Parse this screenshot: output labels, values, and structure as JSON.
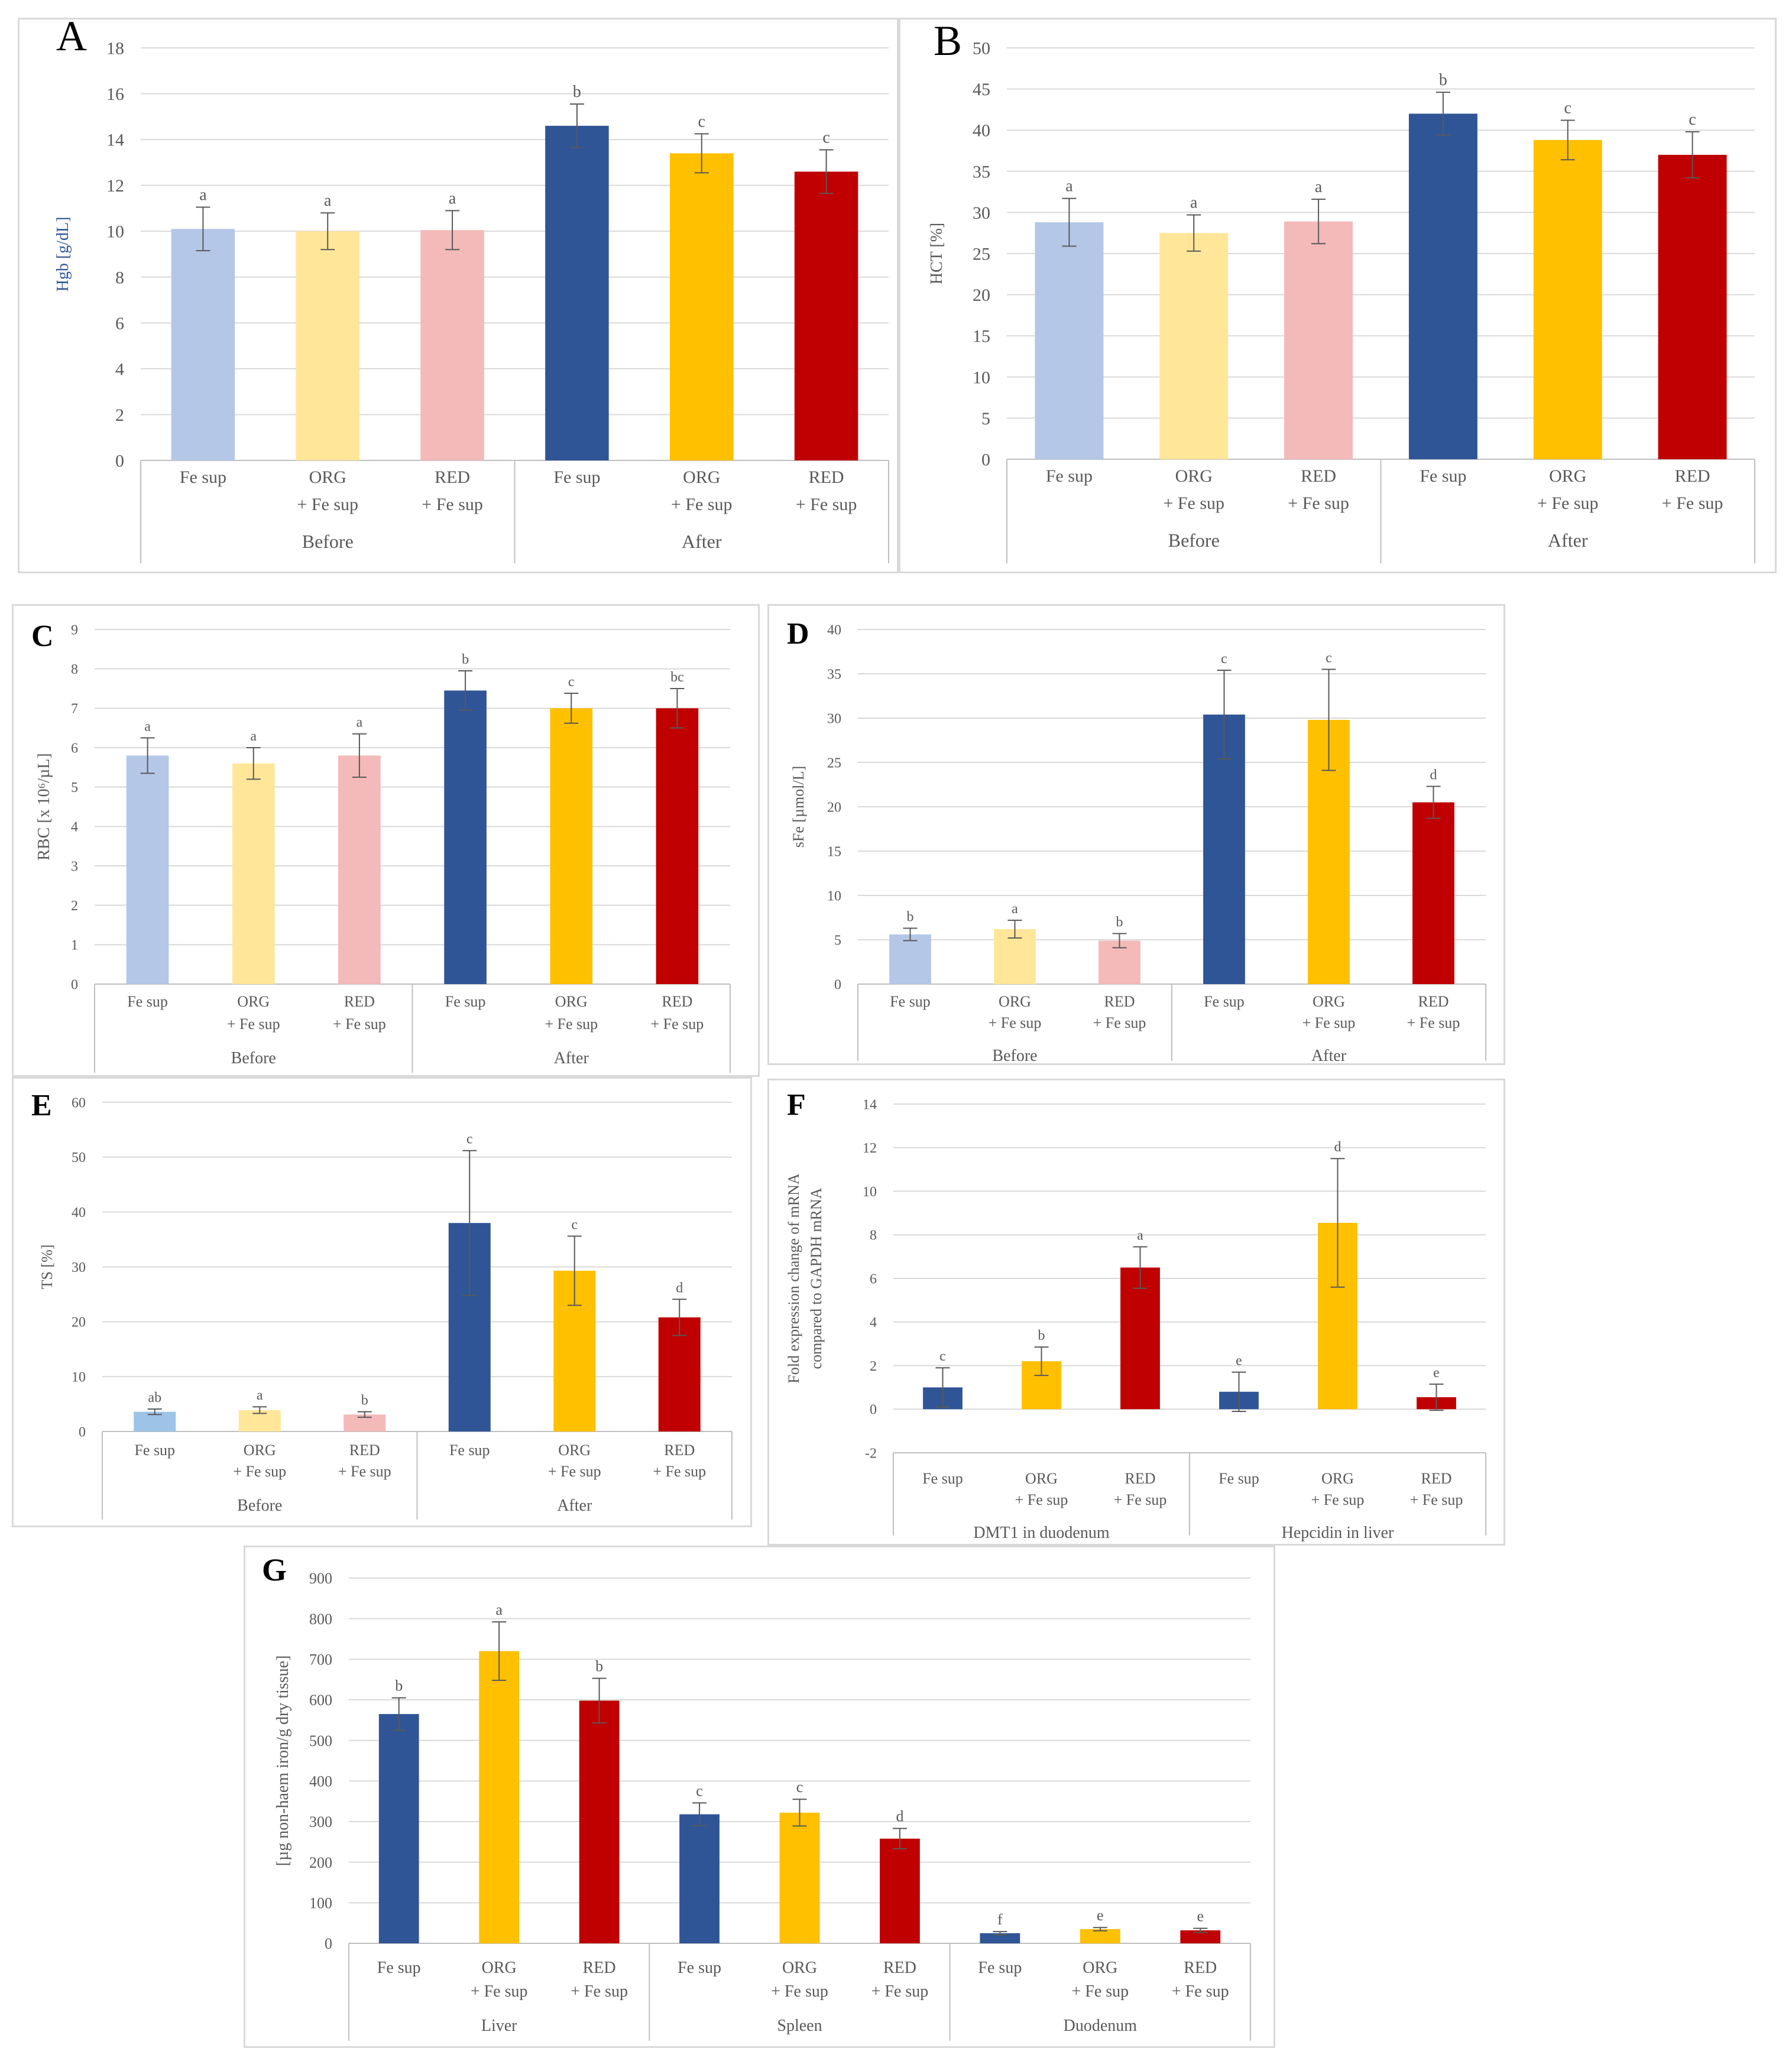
{
  "colors": {
    "fe_before": "#b4c7e7",
    "org_before": "#ffe699",
    "red_before": "#f4b9b9",
    "fe_after": "#2f5597",
    "org_after": "#ffc000",
    "red_after": "#c00000",
    "fe_light_e": "#9dc3e6",
    "gridline": "#d9d9d9",
    "axis_text": "#595959",
    "error_bar": "#595959"
  },
  "chart_data": [
    {
      "panel": "A",
      "type": "bar",
      "ylabel": "Hgb [g/dL]",
      "ylim": [
        0,
        18
      ],
      "yticks": [
        0,
        2,
        4,
        6,
        8,
        10,
        12,
        14,
        16,
        18
      ],
      "categories": [
        {
          "line1": "Fe sup",
          "line2": ""
        },
        {
          "line1": "ORG",
          "line2": "+ Fe sup"
        },
        {
          "line1": "RED",
          "line2": "+ Fe sup"
        },
        {
          "line1": "Fe sup",
          "line2": ""
        },
        {
          "line1": "ORG",
          "line2": "+ Fe sup"
        },
        {
          "line1": "RED",
          "line2": "+ Fe sup"
        }
      ],
      "groups": [
        "Before",
        "After"
      ],
      "values": [
        10.1,
        10.0,
        10.05,
        14.6,
        13.4,
        12.6
      ],
      "errors": [
        0.95,
        0.8,
        0.85,
        0.95,
        0.85,
        0.95
      ],
      "letters": [
        "a",
        "a",
        "a",
        "b",
        "c",
        "c"
      ],
      "color_keys": [
        "fe_before",
        "org_before",
        "red_before",
        "fe_after",
        "org_after",
        "red_after"
      ]
    },
    {
      "panel": "B",
      "type": "bar",
      "ylabel": "HCT [%]",
      "ylim": [
        0,
        50
      ],
      "yticks": [
        0,
        5,
        10,
        15,
        20,
        25,
        30,
        35,
        40,
        45,
        50
      ],
      "categories": [
        {
          "line1": "Fe sup",
          "line2": ""
        },
        {
          "line1": "ORG",
          "line2": "+ Fe sup"
        },
        {
          "line1": "RED",
          "line2": "+ Fe sup"
        },
        {
          "line1": "Fe sup",
          "line2": ""
        },
        {
          "line1": "ORG",
          "line2": "+ Fe sup"
        },
        {
          "line1": "RED",
          "line2": "+ Fe sup"
        }
      ],
      "groups": [
        "Before",
        "After"
      ],
      "values": [
        28.8,
        27.5,
        28.9,
        42.0,
        38.8,
        37.0
      ],
      "errors": [
        2.9,
        2.2,
        2.7,
        2.6,
        2.4,
        2.8
      ],
      "letters": [
        "a",
        "a",
        "a",
        "b",
        "c",
        "c"
      ],
      "color_keys": [
        "fe_before",
        "org_before",
        "red_before",
        "fe_after",
        "org_after",
        "red_after"
      ]
    },
    {
      "panel": "C",
      "type": "bar",
      "ylabel": "RBC [x 10⁶/µL]",
      "ylim": [
        0,
        9
      ],
      "yticks": [
        0,
        1,
        2,
        3,
        4,
        5,
        6,
        7,
        8,
        9
      ],
      "categories": [
        {
          "line1": "Fe sup",
          "line2": ""
        },
        {
          "line1": "ORG",
          "line2": "+ Fe sup"
        },
        {
          "line1": "RED",
          "line2": "+ Fe sup"
        },
        {
          "line1": "Fe sup",
          "line2": ""
        },
        {
          "line1": "ORG",
          "line2": "+ Fe sup"
        },
        {
          "line1": "RED",
          "line2": "+ Fe sup"
        }
      ],
      "groups": [
        "Before",
        "After"
      ],
      "values": [
        5.8,
        5.6,
        5.8,
        7.45,
        7.0,
        7.0
      ],
      "errors": [
        0.45,
        0.4,
        0.55,
        0.5,
        0.38,
        0.5
      ],
      "letters": [
        "a",
        "a",
        "a",
        "b",
        "c",
        "bc"
      ],
      "color_keys": [
        "fe_before",
        "org_before",
        "red_before",
        "fe_after",
        "org_after",
        "red_after"
      ]
    },
    {
      "panel": "D",
      "type": "bar",
      "ylabel": "sFe [µmol/L]",
      "ylim": [
        0,
        40
      ],
      "yticks": [
        0,
        5,
        10,
        15,
        20,
        25,
        30,
        35,
        40
      ],
      "categories": [
        {
          "line1": "Fe sup",
          "line2": ""
        },
        {
          "line1": "ORG",
          "line2": "+ Fe sup"
        },
        {
          "line1": "RED",
          "line2": "+ Fe sup"
        },
        {
          "line1": "Fe sup",
          "line2": ""
        },
        {
          "line1": "ORG",
          "line2": "+ Fe sup"
        },
        {
          "line1": "RED",
          "line2": "+ Fe sup"
        }
      ],
      "groups": [
        "Before",
        "After"
      ],
      "values": [
        5.6,
        6.2,
        4.9,
        30.4,
        29.8,
        20.5
      ],
      "errors": [
        0.7,
        1.0,
        0.8,
        5.0,
        5.7,
        1.8
      ],
      "letters": [
        "b",
        "a",
        "b",
        "c",
        "c",
        "d"
      ],
      "color_keys": [
        "fe_before",
        "org_before",
        "red_before",
        "fe_after",
        "org_after",
        "red_after"
      ]
    },
    {
      "panel": "E",
      "type": "bar",
      "ylabel": "TS [%]",
      "ylim": [
        0,
        60
      ],
      "yticks": [
        0,
        10,
        20,
        30,
        40,
        50,
        60
      ],
      "categories": [
        {
          "line1": "Fe sup",
          "line2": ""
        },
        {
          "line1": "ORG",
          "line2": "+ Fe sup"
        },
        {
          "line1": "RED",
          "line2": "+ Fe sup"
        },
        {
          "line1": "Fe sup",
          "line2": ""
        },
        {
          "line1": "ORG",
          "line2": "+ Fe sup"
        },
        {
          "line1": "RED",
          "line2": "+ Fe sup"
        }
      ],
      "groups": [
        "Before",
        "After"
      ],
      "values": [
        3.6,
        3.9,
        3.1,
        38.0,
        29.3,
        20.8
      ],
      "errors": [
        0.5,
        0.6,
        0.5,
        13.2,
        6.3,
        3.3
      ],
      "letters": [
        "ab",
        "a",
        "b",
        "c",
        "c",
        "d"
      ],
      "color_keys": [
        "fe_light_e",
        "org_before",
        "red_before",
        "fe_after",
        "org_after",
        "red_after"
      ]
    },
    {
      "panel": "F",
      "type": "bar",
      "ylabel_lines": [
        "Fold expression change of mRNA",
        "compared to GAPDH mRNA"
      ],
      "ylim": [
        -2,
        14
      ],
      "yticks": [
        -2,
        0,
        2,
        4,
        6,
        8,
        10,
        12,
        14
      ],
      "categories": [
        {
          "line1": "Fe sup",
          "line2": ""
        },
        {
          "line1": "ORG",
          "line2": "+ Fe sup"
        },
        {
          "line1": "RED",
          "line2": "+ Fe sup"
        },
        {
          "line1": "Fe sup",
          "line2": ""
        },
        {
          "line1": "ORG",
          "line2": "+ Fe sup"
        },
        {
          "line1": "RED",
          "line2": "+ Fe sup"
        }
      ],
      "groups": [
        "DMT1 in duodenum",
        "Hepcidin in liver"
      ],
      "values": [
        1.0,
        2.2,
        6.5,
        0.8,
        8.55,
        0.55
      ],
      "errors": [
        0.9,
        0.65,
        0.95,
        0.9,
        2.95,
        0.6
      ],
      "letters": [
        "c",
        "b",
        "a",
        "e",
        "d",
        "e"
      ],
      "color_keys": [
        "fe_after",
        "org_after",
        "red_after",
        "fe_after",
        "org_after",
        "red_after"
      ]
    },
    {
      "panel": "G",
      "type": "bar",
      "ylabel": "[µg non-haem iron/g dry tissue]",
      "ylim": [
        0,
        900
      ],
      "yticks": [
        0,
        100,
        200,
        300,
        400,
        500,
        600,
        700,
        800,
        900
      ],
      "categories": [
        {
          "line1": "Fe sup",
          "line2": ""
        },
        {
          "line1": "ORG",
          "line2": "+ Fe sup"
        },
        {
          "line1": "RED",
          "line2": "+ Fe sup"
        },
        {
          "line1": "Fe sup",
          "line2": ""
        },
        {
          "line1": "ORG",
          "line2": "+ Fe sup"
        },
        {
          "line1": "RED",
          "line2": "+ Fe sup"
        },
        {
          "line1": "Fe sup",
          "line2": ""
        },
        {
          "line1": "ORG",
          "line2": "+ Fe sup"
        },
        {
          "line1": "RED",
          "line2": "+ Fe sup"
        }
      ],
      "groups": [
        "Liver",
        "Spleen",
        "Duodenum"
      ],
      "values": [
        565,
        720,
        598,
        318,
        322,
        258,
        25,
        35,
        32
      ],
      "errors": [
        40,
        72,
        55,
        28,
        33,
        25,
        4,
        4,
        5
      ],
      "letters": [
        "b",
        "a",
        "b",
        "c",
        "c",
        "d",
        "f",
        "e",
        "e"
      ],
      "color_keys": [
        "fe_after",
        "org_after",
        "red_after",
        "fe_after",
        "org_after",
        "red_after",
        "fe_after",
        "org_after",
        "red_after"
      ]
    }
  ]
}
